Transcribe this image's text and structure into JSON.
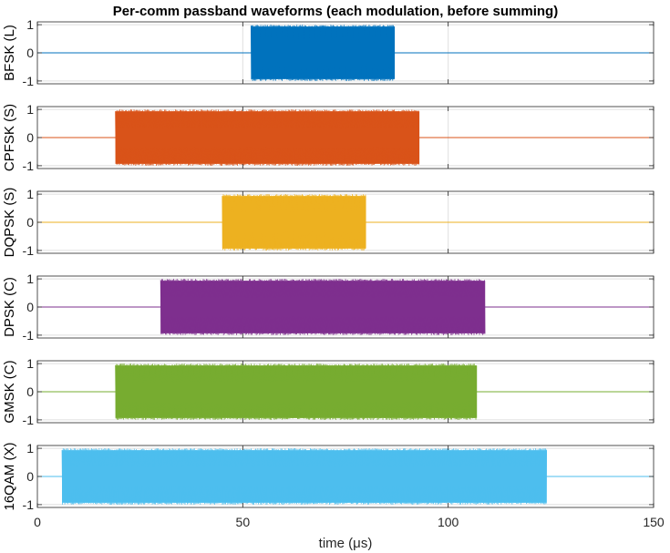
{
  "chart_data": {
    "type": "line",
    "title": "Per-comm passband waveforms (each modulation, before summing)",
    "xlabel": "time (μs)",
    "xlim": [
      0,
      150
    ],
    "xticks": [
      0,
      50,
      100,
      150
    ],
    "ylim": [
      -1.1,
      1.1
    ],
    "yticks": [
      -1,
      0,
      1
    ],
    "grid": true,
    "series": [
      {
        "name": "BFSK (L)",
        "color": "#0072BD",
        "active_start": 52,
        "active_end": 87,
        "amplitude": 1
      },
      {
        "name": "CPFSK (S)",
        "color": "#D95319",
        "active_start": 19,
        "active_end": 93,
        "amplitude": 1
      },
      {
        "name": "DQPSK (S)",
        "color": "#EDB120",
        "active_start": 45,
        "active_end": 80,
        "amplitude": 1
      },
      {
        "name": "DPSK (C)",
        "color": "#7E2F8E",
        "active_start": 30,
        "active_end": 109,
        "amplitude": 1
      },
      {
        "name": "GMSK (C)",
        "color": "#77AC30",
        "active_start": 19,
        "active_end": 107,
        "amplitude": 1
      },
      {
        "name": "16QAM (X)",
        "color": "#4DBEEE",
        "active_start": 6,
        "active_end": 124,
        "amplitude": 1
      }
    ]
  }
}
